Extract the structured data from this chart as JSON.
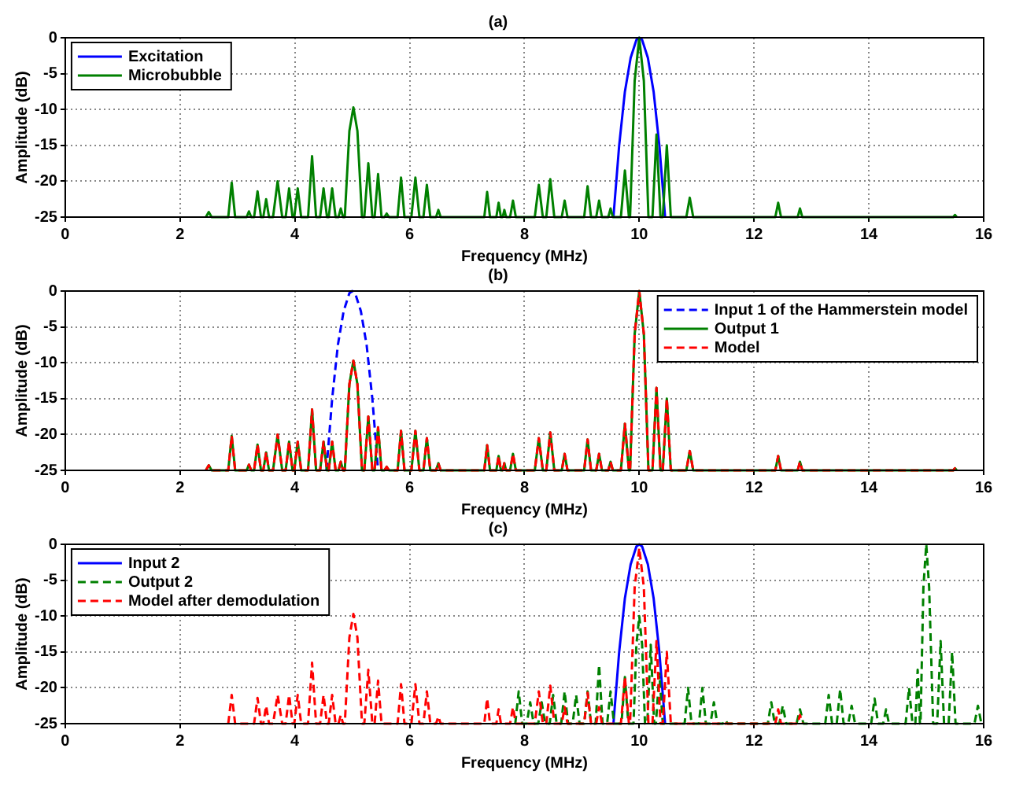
{
  "chart_data": [
    {
      "type": "line",
      "title": "(a)",
      "xlabel": "Frequency (MHz)",
      "ylabel": "Amplitude (dB)",
      "xlim": [
        0,
        16
      ],
      "xticks": [
        0,
        2,
        4,
        6,
        8,
        10,
        12,
        14,
        16
      ],
      "ylim": [
        -25,
        0
      ],
      "yticks": [
        -25,
        -20,
        -15,
        -10,
        -5,
        0
      ],
      "grid": true,
      "legend": "top left",
      "series": [
        {
          "name": "Excitation",
          "color": "#0000ff",
          "line_style": "solid",
          "x": [
            9.55,
            9.65,
            9.75,
            9.85,
            9.95,
            10,
            10.05,
            10.15,
            10.25,
            10.35,
            10.45
          ],
          "values": [
            -25,
            -15,
            -7.5,
            -2.8,
            -0.3,
            0,
            -0.3,
            -2.8,
            -7.5,
            -15,
            -25
          ]
        },
        {
          "name": "Microbubble",
          "color": "#008000",
          "line_style": "solid",
          "x": [
            2.45,
            2.5,
            2.55,
            2.84,
            2.9,
            2.96,
            3.16,
            3.2,
            3.24,
            3.29,
            3.35,
            3.41,
            3.45,
            3.5,
            3.55,
            3.62,
            3.7,
            3.78,
            3.84,
            3.9,
            3.96,
            3.99,
            4.05,
            4.11,
            4.23,
            4.3,
            4.37,
            4.44,
            4.5,
            4.56,
            4.59,
            4.65,
            4.71,
            4.76,
            4.8,
            4.84,
            4.87,
            4.95,
            5.02,
            5.09,
            5.17,
            5.21,
            5.28,
            5.35,
            5.39,
            5.45,
            5.51,
            5.56,
            5.6,
            5.64,
            5.79,
            5.85,
            5.91,
            6.03,
            6.1,
            6.17,
            6.24,
            6.3,
            6.36,
            6.46,
            6.5,
            6.54,
            7.3,
            7.35,
            7.4,
            7.51,
            7.55,
            7.59,
            7.62,
            7.65,
            7.68,
            7.75,
            7.8,
            7.85,
            8.18,
            8.25,
            8.32,
            8.38,
            8.45,
            8.52,
            8.65,
            8.7,
            8.75,
            9.04,
            9.1,
            9.16,
            9.25,
            9.3,
            9.35,
            9.46,
            9.5,
            9.54,
            9.68,
            9.75,
            9.82,
            9.84,
            9.92,
            10,
            10.08,
            10.16,
            10.23,
            10.3,
            10.37,
            10.41,
            10.48,
            10.55,
            10.82,
            10.88,
            10.94,
            12.37,
            12.42,
            12.47,
            12.76,
            12.8,
            12.84,
            15.47,
            15.5,
            15.53
          ],
          "values": [
            -25,
            -24.3,
            -25,
            -25,
            -20.2,
            -25,
            -25,
            -24.2,
            -25,
            -25,
            -21.4,
            -25,
            -25,
            -22.5,
            -25,
            -25,
            -20,
            -25,
            -25,
            -21,
            -25,
            -25,
            -21,
            -25,
            -25,
            -16.5,
            -25,
            -25,
            -21,
            -25,
            -25,
            -21,
            -25,
            -25,
            -23.8,
            -25,
            -25,
            -13,
            -9.7,
            -13,
            -25,
            -25,
            -17.5,
            -25,
            -25,
            -19,
            -25,
            -25,
            -24.5,
            -25,
            -25,
            -19.5,
            -25,
            -25,
            -19.5,
            -25,
            -25,
            -20.5,
            -25,
            -25,
            -24,
            -25,
            -25,
            -21.5,
            -25,
            -25,
            -23,
            -25,
            -25,
            -24,
            -25,
            -25,
            -22.7,
            -25,
            -25,
            -20.5,
            -25,
            -25,
            -19.7,
            -25,
            -25,
            -22.7,
            -25,
            -25,
            -20.7,
            -25,
            -25,
            -22.7,
            -25,
            -25,
            -23.8,
            -25,
            -25,
            -18.5,
            -25,
            -25,
            -6,
            0,
            -6,
            -25,
            -25,
            -13.5,
            -25,
            -25,
            -15,
            -25,
            -25,
            -22.3,
            -25,
            -25,
            -23,
            -25,
            -25,
            -23.8,
            -25,
            -25,
            -24.7,
            -25
          ]
        }
      ]
    },
    {
      "type": "line",
      "title": "(b)",
      "xlabel": "Frequency (MHz)",
      "ylabel": "Amplitude (dB)",
      "xlim": [
        0,
        16
      ],
      "xticks": [
        0,
        2,
        4,
        6,
        8,
        10,
        12,
        14,
        16
      ],
      "ylim": [
        -25,
        0
      ],
      "yticks": [
        -25,
        -20,
        -15,
        -10,
        -5,
        0
      ],
      "grid": true,
      "legend": "top right",
      "series": [
        {
          "name": "Input 1 of the Hammerstein model",
          "color": "#0000ff",
          "line_style": "dashed",
          "x": [
            4.55,
            4.65,
            4.75,
            4.85,
            4.95,
            5,
            5.05,
            5.15,
            5.25,
            5.35,
            5.45
          ],
          "values": [
            -25,
            -15,
            -7.5,
            -2.8,
            -0.3,
            0,
            -0.3,
            -2.8,
            -7.5,
            -15,
            -25
          ]
        },
        {
          "name": "Output 1",
          "color": "#008000",
          "line_style": "solid",
          "x": [
            2.45,
            2.5,
            2.55,
            2.84,
            2.9,
            2.96,
            3.16,
            3.2,
            3.24,
            3.29,
            3.35,
            3.41,
            3.45,
            3.5,
            3.55,
            3.62,
            3.7,
            3.78,
            3.84,
            3.9,
            3.96,
            3.99,
            4.05,
            4.11,
            4.23,
            4.3,
            4.37,
            4.44,
            4.5,
            4.56,
            4.59,
            4.65,
            4.71,
            4.76,
            4.8,
            4.84,
            4.87,
            4.95,
            5.02,
            5.09,
            5.17,
            5.21,
            5.28,
            5.35,
            5.39,
            5.45,
            5.51,
            5.56,
            5.6,
            5.64,
            5.79,
            5.85,
            5.91,
            6.03,
            6.1,
            6.17,
            6.24,
            6.3,
            6.36,
            6.46,
            6.5,
            6.54,
            7.3,
            7.35,
            7.4,
            7.51,
            7.55,
            7.59,
            7.62,
            7.65,
            7.68,
            7.75,
            7.8,
            7.85,
            8.18,
            8.25,
            8.32,
            8.38,
            8.45,
            8.52,
            8.65,
            8.7,
            8.75,
            9.04,
            9.1,
            9.16,
            9.25,
            9.3,
            9.35,
            9.46,
            9.5,
            9.54,
            9.68,
            9.75,
            9.82,
            9.84,
            9.92,
            10,
            10.08,
            10.16,
            10.23,
            10.3,
            10.37,
            10.41,
            10.48,
            10.55,
            10.82,
            10.88,
            10.94,
            12.37,
            12.42,
            12.47,
            12.76,
            12.8,
            12.84,
            15.47,
            15.5,
            15.53
          ],
          "values": [
            -25,
            -24.3,
            -25,
            -25,
            -20.2,
            -25,
            -25,
            -24.2,
            -25,
            -25,
            -21.4,
            -25,
            -25,
            -22.5,
            -25,
            -25,
            -20,
            -25,
            -25,
            -21,
            -25,
            -25,
            -21,
            -25,
            -25,
            -16.5,
            -25,
            -25,
            -21,
            -25,
            -25,
            -21,
            -25,
            -25,
            -23.8,
            -25,
            -25,
            -13,
            -9.7,
            -13,
            -25,
            -25,
            -17.5,
            -25,
            -25,
            -19,
            -25,
            -25,
            -24.5,
            -25,
            -25,
            -19.5,
            -25,
            -25,
            -19.5,
            -25,
            -25,
            -20.5,
            -25,
            -25,
            -24,
            -25,
            -25,
            -21.5,
            -25,
            -25,
            -23,
            -25,
            -25,
            -24,
            -25,
            -25,
            -22.7,
            -25,
            -25,
            -20.5,
            -25,
            -25,
            -19.7,
            -25,
            -25,
            -22.7,
            -25,
            -25,
            -20.7,
            -25,
            -25,
            -22.7,
            -25,
            -25,
            -23.8,
            -25,
            -25,
            -18.5,
            -25,
            -25,
            -6,
            0,
            -6,
            -25,
            -25,
            -13.5,
            -25,
            -25,
            -15,
            -25,
            -25,
            -22.3,
            -25,
            -25,
            -23,
            -25,
            -25,
            -23.8,
            -25,
            -25,
            -24.7,
            -25
          ]
        },
        {
          "name": "Model",
          "color": "#ff0000",
          "line_style": "dashed",
          "x": [
            2.45,
            2.5,
            2.55,
            2.84,
            2.9,
            2.96,
            3.16,
            3.2,
            3.24,
            3.29,
            3.35,
            3.41,
            3.45,
            3.5,
            3.55,
            3.62,
            3.7,
            3.78,
            3.84,
            3.9,
            3.96,
            3.99,
            4.05,
            4.11,
            4.23,
            4.3,
            4.37,
            4.44,
            4.5,
            4.56,
            4.59,
            4.65,
            4.71,
            4.76,
            4.8,
            4.84,
            4.87,
            4.95,
            5.02,
            5.09,
            5.17,
            5.21,
            5.28,
            5.35,
            5.39,
            5.45,
            5.51,
            5.56,
            5.6,
            5.64,
            5.79,
            5.85,
            5.91,
            6.03,
            6.1,
            6.17,
            6.24,
            6.3,
            6.36,
            6.46,
            6.5,
            6.54,
            7.3,
            7.35,
            7.4,
            7.51,
            7.55,
            7.59,
            7.62,
            7.65,
            7.68,
            7.75,
            7.8,
            7.85,
            8.18,
            8.25,
            8.32,
            8.38,
            8.45,
            8.52,
            8.65,
            8.7,
            8.75,
            9.04,
            9.1,
            9.16,
            9.25,
            9.3,
            9.35,
            9.46,
            9.5,
            9.54,
            9.68,
            9.75,
            9.82,
            9.84,
            9.92,
            10,
            10.08,
            10.16,
            10.23,
            10.3,
            10.37,
            10.41,
            10.48,
            10.55,
            10.82,
            10.88,
            10.94,
            12.37,
            12.42,
            12.47,
            12.76,
            12.8,
            12.84,
            15.47,
            15.5,
            15.53
          ],
          "values": [
            -25,
            -24.3,
            -25,
            -25,
            -20.2,
            -25,
            -25,
            -24.2,
            -25,
            -25,
            -21.4,
            -25,
            -25,
            -22.5,
            -25,
            -25,
            -20,
            -25,
            -25,
            -21,
            -25,
            -25,
            -21,
            -25,
            -25,
            -16.5,
            -25,
            -25,
            -21,
            -25,
            -25,
            -21,
            -25,
            -25,
            -23.8,
            -25,
            -25,
            -13,
            -9.7,
            -13,
            -25,
            -25,
            -17.5,
            -25,
            -25,
            -19,
            -25,
            -25,
            -24.5,
            -25,
            -25,
            -19.5,
            -25,
            -25,
            -19.5,
            -25,
            -25,
            -20.5,
            -25,
            -25,
            -24,
            -25,
            -25,
            -21.5,
            -25,
            -25,
            -23,
            -25,
            -25,
            -24,
            -25,
            -25,
            -22.7,
            -25,
            -25,
            -20.5,
            -25,
            -25,
            -19.7,
            -25,
            -25,
            -22.7,
            -25,
            -25,
            -20.7,
            -25,
            -25,
            -22.7,
            -25,
            -25,
            -23.8,
            -25,
            -25,
            -18.5,
            -25,
            -25,
            -6,
            0,
            -6,
            -25,
            -25,
            -13.5,
            -25,
            -25,
            -15,
            -25,
            -25,
            -22.3,
            -25,
            -25,
            -23,
            -25,
            -25,
            -23.8,
            -25,
            -25,
            -24.7,
            -25
          ]
        }
      ]
    },
    {
      "type": "line",
      "title": "(c)",
      "xlabel": "Frequency (MHz)",
      "ylabel": "Amplitude (dB)",
      "xlim": [
        0,
        16
      ],
      "xticks": [
        0,
        2,
        4,
        6,
        8,
        10,
        12,
        14,
        16
      ],
      "ylim": [
        -25,
        0
      ],
      "yticks": [
        -25,
        -20,
        -15,
        -10,
        -5,
        0
      ],
      "grid": true,
      "legend": "top left",
      "series": [
        {
          "name": "Input 2",
          "color": "#0000ff",
          "line_style": "solid",
          "x": [
            9.55,
            9.65,
            9.75,
            9.85,
            9.95,
            10,
            10.05,
            10.15,
            10.25,
            10.35,
            10.45
          ],
          "values": [
            -25,
            -15,
            -7.5,
            -2.8,
            -0.3,
            0,
            -0.3,
            -2.8,
            -7.5,
            -15,
            -25
          ]
        },
        {
          "name": "Output 2",
          "color": "#008000",
          "line_style": "dashed",
          "x": [
            7.84,
            7.9,
            7.96,
            8.04,
            8.1,
            8.16,
            8.24,
            8.3,
            8.36,
            8.44,
            8.5,
            8.56,
            8.64,
            8.7,
            8.76,
            8.84,
            8.9,
            8.96,
            9.04,
            9.1,
            9.16,
            9.24,
            9.3,
            9.36,
            9.44,
            9.5,
            9.56,
            9.69,
            9.75,
            9.81,
            9.9,
            9.95,
            10,
            10.05,
            10.1,
            10.14,
            10.2,
            10.26,
            10.29,
            10.35,
            10.41,
            10.79,
            10.85,
            10.91,
            11.04,
            11.1,
            11.16,
            11.24,
            11.3,
            11.36,
            11.46,
            11.5,
            11.54,
            12.24,
            12.3,
            12.36,
            12.44,
            12.5,
            12.56,
            12.74,
            12.8,
            12.86,
            13.24,
            13.3,
            13.36,
            13.44,
            13.5,
            13.56,
            13.64,
            13.7,
            13.76,
            14.04,
            14.1,
            14.16,
            14.25,
            14.3,
            14.35,
            14.64,
            14.7,
            14.76,
            14.81,
            14.85,
            14.89,
            14.9,
            14.95,
            15,
            15.05,
            15.12,
            15.19,
            15.25,
            15.31,
            15.39,
            15.45,
            15.51,
            15.84,
            15.9,
            15.96
          ],
          "values": [
            -25,
            -20.5,
            -25,
            -25,
            -22,
            -25,
            -25,
            -22,
            -25,
            -25,
            -21,
            -25,
            -25,
            -20.5,
            -25,
            -25,
            -21,
            -25,
            -25,
            -20.5,
            -25,
            -25,
            -16.8,
            -25,
            -25,
            -20.5,
            -25,
            -25,
            -18.5,
            -25,
            -25,
            -14,
            -10,
            -14,
            -25,
            -25,
            -14,
            -25,
            -25,
            -18,
            -25,
            -25,
            -20,
            -25,
            -25,
            -20,
            -25,
            -25,
            -22,
            -25,
            -25,
            -24.5,
            -25,
            -25,
            -22,
            -25,
            -25,
            -22.5,
            -25,
            -25,
            -23,
            -25,
            -25,
            -21,
            -25,
            -25,
            -20.2,
            -25,
            -25,
            -22.5,
            -25,
            -25,
            -21.5,
            -25,
            -25,
            -23,
            -25,
            -25,
            -20,
            -25,
            -25,
            -17.5,
            -25,
            -25,
            -6,
            0,
            -6,
            -25,
            -25,
            -13.5,
            -25,
            -25,
            -15,
            -25,
            -25,
            -22.5,
            -25
          ]
        },
        {
          "name": "Model after demodulation",
          "color": "#ff0000",
          "line_style": "dashed",
          "x": [
            2.84,
            2.9,
            2.96,
            3.29,
            3.35,
            3.41,
            3.45,
            3.5,
            3.55,
            3.62,
            3.7,
            3.78,
            3.84,
            3.9,
            3.96,
            3.99,
            4.05,
            4.11,
            4.23,
            4.3,
            4.37,
            4.44,
            4.5,
            4.56,
            4.59,
            4.65,
            4.71,
            4.76,
            4.8,
            4.84,
            4.87,
            4.95,
            5.02,
            5.09,
            5.17,
            5.21,
            5.28,
            5.35,
            5.39,
            5.45,
            5.51,
            5.79,
            5.85,
            5.91,
            6.03,
            6.1,
            6.17,
            6.24,
            6.3,
            6.36,
            6.46,
            6.5,
            6.54,
            7.3,
            7.35,
            7.4,
            7.51,
            7.55,
            7.59,
            7.75,
            7.8,
            7.85,
            8.18,
            8.25,
            8.32,
            8.38,
            8.45,
            8.52,
            8.65,
            8.7,
            8.75,
            9.04,
            9.1,
            9.16,
            9.25,
            9.3,
            9.35,
            9.68,
            9.75,
            9.82,
            9.84,
            9.92,
            10,
            10.08,
            10.16,
            10.23,
            10.3,
            10.37,
            10.41,
            10.48,
            10.55,
            12.37,
            12.42,
            12.47,
            12.76,
            12.8,
            12.84
          ],
          "values": [
            -25,
            -21,
            -25,
            -25,
            -21.4,
            -25,
            -25,
            -22.5,
            -25,
            -25,
            -21,
            -25,
            -25,
            -21,
            -25,
            -25,
            -21,
            -25,
            -25,
            -16.5,
            -25,
            -25,
            -21,
            -25,
            -25,
            -21,
            -25,
            -25,
            -23.8,
            -25,
            -25,
            -13,
            -9.7,
            -13,
            -25,
            -25,
            -17.5,
            -25,
            -25,
            -19,
            -25,
            -25,
            -19.5,
            -25,
            -25,
            -19.5,
            -25,
            -25,
            -20.5,
            -25,
            -25,
            -24,
            -25,
            -25,
            -21.5,
            -25,
            -25,
            -23,
            -25,
            -25,
            -22.7,
            -25,
            -25,
            -20.5,
            -25,
            -25,
            -19.7,
            -25,
            -25,
            -22.7,
            -25,
            -25,
            -20.7,
            -25,
            -25,
            -22.7,
            -25,
            -25,
            -18.5,
            -25,
            -25,
            -6,
            -0.5,
            -6,
            -25,
            -25,
            -13.5,
            -25,
            -25,
            -15,
            -25,
            -25,
            -23,
            -25,
            -25,
            -23.8,
            -25
          ]
        }
      ]
    }
  ]
}
